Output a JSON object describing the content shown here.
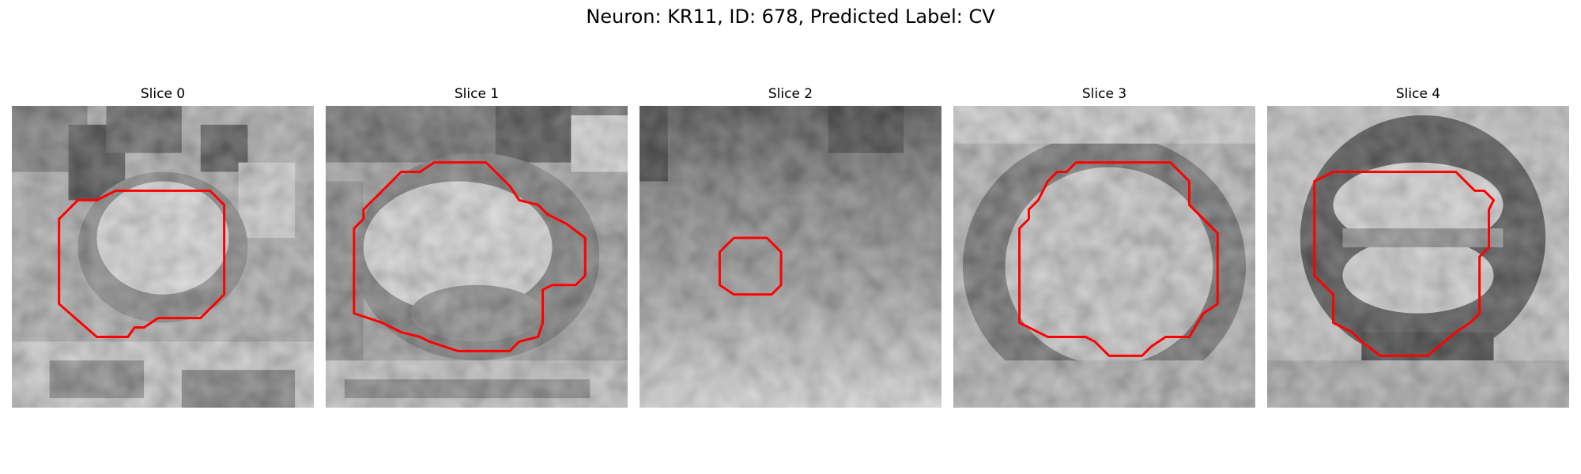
{
  "figure": {
    "title": "Neuron: KR11, ID: 678, Predicted Label: CV"
  },
  "contour_color": "#ff0000",
  "panels": [
    {
      "title": "Slice 0"
    },
    {
      "title": "Slice 1"
    },
    {
      "title": "Slice 2"
    },
    {
      "title": "Slice 3"
    },
    {
      "title": "Slice 4"
    }
  ]
}
